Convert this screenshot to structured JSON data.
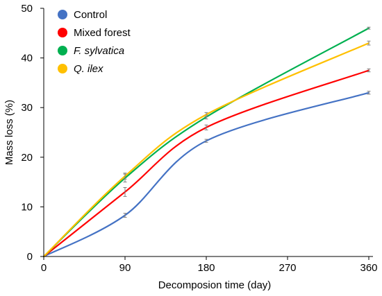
{
  "chart_data": {
    "type": "line",
    "xlabel": "Decomposion time (day)",
    "ylabel": "Mass loss (%)",
    "xlim": [
      0,
      360
    ],
    "ylim": [
      0,
      50
    ],
    "xticks": [
      0,
      90,
      180,
      270,
      360
    ],
    "yticks": [
      0,
      10,
      20,
      30,
      40,
      50
    ],
    "grid": false,
    "legend_position": "top-left",
    "x": [
      0,
      90,
      180,
      360
    ],
    "series": [
      {
        "name": "Control",
        "italic": false,
        "color": "#4472C4",
        "values": [
          0,
          8.3,
          23.3,
          33.0
        ],
        "errors": [
          0,
          0.4,
          0.3,
          0.3
        ]
      },
      {
        "name": "Mixed forest",
        "italic": false,
        "color": "#FF0000",
        "values": [
          0,
          13.0,
          26.0,
          37.5
        ],
        "errors": [
          0,
          0.9,
          0.5,
          0.3
        ]
      },
      {
        "name": "F. sylvatica",
        "italic": true,
        "color": "#00B050",
        "values": [
          0,
          15.8,
          28.1,
          46.0
        ],
        "errors": [
          0,
          0.8,
          0.4,
          0.2
        ]
      },
      {
        "name": "Q. ilex",
        "italic": true,
        "color": "#FFC000",
        "values": [
          0,
          16.2,
          28.6,
          43.0
        ],
        "errors": [
          0,
          0.6,
          0.4,
          0.4
        ]
      }
    ]
  }
}
